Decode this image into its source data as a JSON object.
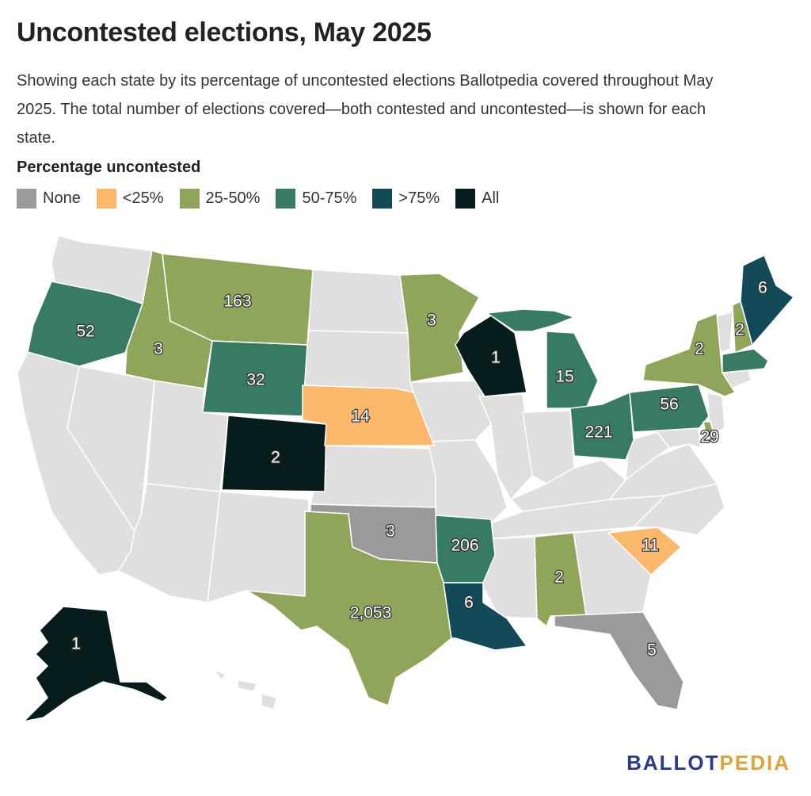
{
  "title": "Uncontested elections, May 2025",
  "subtitle": "Showing each state by its percentage of uncontested elections Ballotpedia covered throughout May 2025. The total number of elections covered—both contested and uncontested—is shown for each state.",
  "legend": {
    "title": "Percentage uncontested",
    "items": [
      {
        "label": "None",
        "color": "#9a9a9a"
      },
      {
        "label": "<25%",
        "color": "#fbb86a"
      },
      {
        "label": "25-50%",
        "color": "#8fa55a"
      },
      {
        "label": "50-75%",
        "color": "#367b62"
      },
      {
        "label": ">75%",
        "color": "#124a58"
      },
      {
        "label": "All",
        "color": "#071c1d"
      }
    ]
  },
  "no_data_color": "#dfdfdf",
  "states": [
    {
      "state": "Oregon",
      "category": "50-75%",
      "total": "52"
    },
    {
      "state": "Idaho",
      "category": "25-50%",
      "total": "3"
    },
    {
      "state": "Montana",
      "category": "25-50%",
      "total": "163"
    },
    {
      "state": "Wyoming",
      "category": "50-75%",
      "total": "32"
    },
    {
      "state": "Colorado",
      "category": "All",
      "total": "2"
    },
    {
      "state": "Nebraska",
      "category": "<25%",
      "total": "14"
    },
    {
      "state": "Minnesota",
      "category": "25-50%",
      "total": "3"
    },
    {
      "state": "Wisconsin",
      "category": "All",
      "total": "1"
    },
    {
      "state": "Michigan",
      "category": "50-75%",
      "total": "15"
    },
    {
      "state": "Ohio",
      "category": "50-75%",
      "total": "221"
    },
    {
      "state": "Pennsylvania",
      "category": "50-75%",
      "total": "56"
    },
    {
      "state": "New York",
      "category": "25-50%",
      "total": "2"
    },
    {
      "state": "New Hampshire",
      "category": "25-50%",
      "total": "2"
    },
    {
      "state": "Maine",
      "category": ">75%",
      "total": "6"
    },
    {
      "state": "Massachusetts",
      "category": "50-75%",
      "total": ""
    },
    {
      "state": "Delaware",
      "category": "25-50%",
      "total": "29"
    },
    {
      "state": "Oklahoma",
      "category": "None",
      "total": "3"
    },
    {
      "state": "Arkansas",
      "category": "50-75%",
      "total": "206"
    },
    {
      "state": "Texas",
      "category": "25-50%",
      "total": "2,053"
    },
    {
      "state": "Louisiana",
      "category": ">75%",
      "total": "6"
    },
    {
      "state": "Alabama",
      "category": "25-50%",
      "total": "2"
    },
    {
      "state": "South Carolina",
      "category": "<25%",
      "total": "11"
    },
    {
      "state": "Florida",
      "category": "None",
      "total": "5"
    },
    {
      "state": "Alaska",
      "category": "All",
      "total": "1"
    }
  ],
  "logo": {
    "part1": "BALLOT",
    "part2": "PEDIA"
  }
}
